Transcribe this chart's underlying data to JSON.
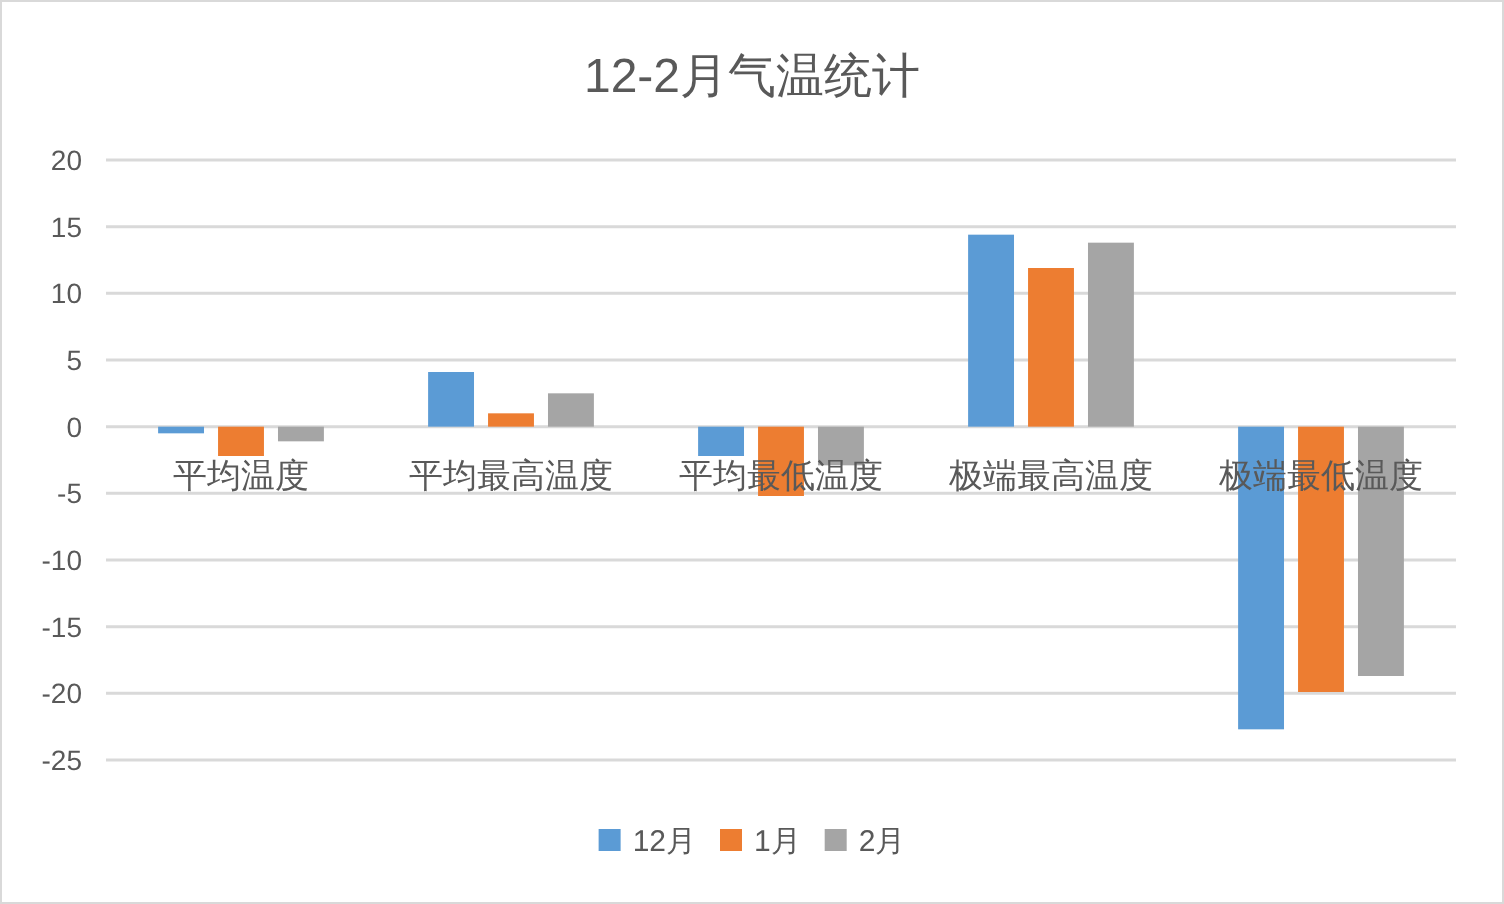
{
  "chart_data": {
    "type": "bar",
    "title": "12-2月气温统计",
    "categories": [
      "平均温度",
      "平均最高温度",
      "平均最低温度",
      "极端最高温度",
      "极端最低温度"
    ],
    "series": [
      {
        "name": "12月",
        "color": "#5b9bd5",
        "values": [
          -0.5,
          4.1,
          -2.2,
          14.4,
          -22.7
        ]
      },
      {
        "name": "1月",
        "color": "#ed7d31",
        "values": [
          -2.2,
          1.0,
          -5.2,
          11.9,
          -19.9
        ]
      },
      {
        "name": "2月",
        "color": "#a5a5a5",
        "values": [
          -1.1,
          2.5,
          -2.9,
          13.8,
          -18.7
        ]
      }
    ],
    "ylim": [
      -25,
      20
    ],
    "yticks": [
      -25,
      -20,
      -15,
      -10,
      -5,
      0,
      5,
      10,
      15,
      20
    ],
    "grid": "y",
    "legend": "bottom"
  }
}
